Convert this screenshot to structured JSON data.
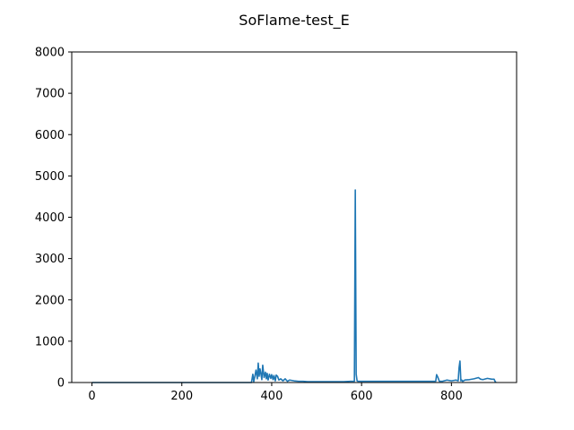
{
  "chart_data": {
    "type": "line",
    "title": "SoFlame-test_E",
    "xlabel": "",
    "ylabel": "",
    "xlim": [
      -45,
      945
    ],
    "ylim": [
      0,
      8000
    ],
    "xticks": [
      0,
      200,
      400,
      600,
      800
    ],
    "yticks": [
      0,
      1000,
      2000,
      3000,
      4000,
      5000,
      6000,
      7000,
      8000
    ],
    "grid": false,
    "line_color": "#1f77b4",
    "series": [
      {
        "x": [
          0,
          50,
          100,
          150,
          200,
          250,
          300,
          340,
          355,
          358,
          360,
          362,
          365,
          368,
          370,
          372,
          374,
          376,
          378,
          380,
          383,
          386,
          388,
          390,
          392,
          395,
          398,
          400,
          403,
          405,
          408,
          410,
          413,
          416,
          420,
          425,
          430,
          435,
          440,
          450,
          460,
          470,
          480,
          500,
          520,
          540,
          560,
          575,
          584,
          586,
          588,
          590,
          592,
          594,
          596,
          600,
          650,
          700,
          750,
          765,
          767,
          770,
          773,
          776,
          780,
          790,
          800,
          810,
          815,
          817,
          819,
          821,
          823,
          825,
          830,
          840,
          850,
          860,
          865,
          870,
          880,
          890,
          895,
          897,
          899
        ],
        "y": [
          0,
          0,
          0,
          0,
          0,
          0,
          0,
          0,
          0,
          200,
          20,
          120,
          300,
          90,
          470,
          150,
          330,
          210,
          70,
          420,
          120,
          250,
          90,
          220,
          60,
          200,
          100,
          190,
          70,
          170,
          40,
          180,
          150,
          60,
          90,
          40,
          90,
          30,
          60,
          40,
          30,
          30,
          20,
          20,
          20,
          20,
          20,
          30,
          30,
          4660,
          200,
          40,
          30,
          30,
          30,
          30,
          30,
          30,
          30,
          30,
          190,
          120,
          30,
          30,
          30,
          60,
          40,
          60,
          40,
          360,
          520,
          40,
          60,
          30,
          60,
          70,
          90,
          120,
          80,
          70,
          100,
          80,
          80,
          30,
          0
        ]
      }
    ]
  }
}
